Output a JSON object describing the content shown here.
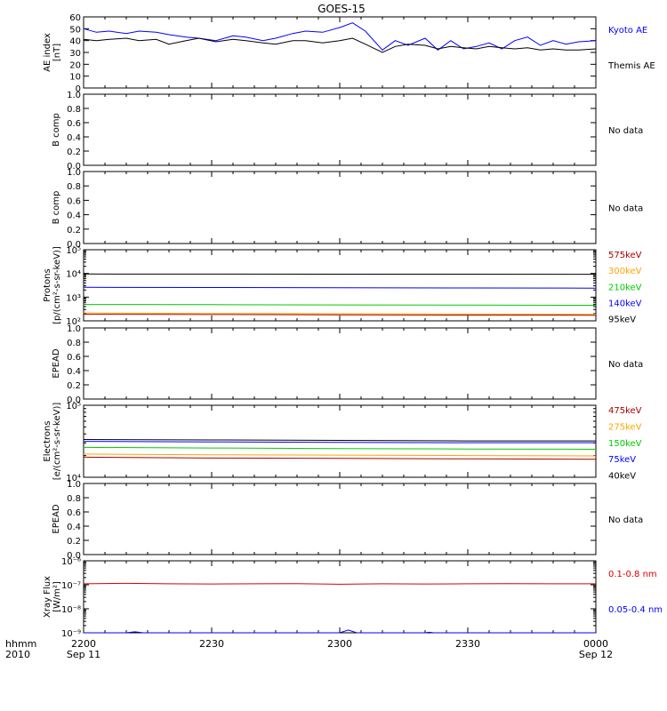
{
  "title": "GOES-15",
  "time_axis": {
    "corner_label": [
      "hhmm",
      "2010"
    ],
    "ticks": [
      {
        "label": "2200",
        "date": "Sep 11",
        "minute": 0
      },
      {
        "label": "2230",
        "date": "",
        "minute": 30
      },
      {
        "label": "2300",
        "date": "",
        "minute": 60
      },
      {
        "label": "2330",
        "date": "",
        "minute": 90
      },
      {
        "label": "0000",
        "date": "Sep 12",
        "minute": 120
      }
    ]
  },
  "colors": {
    "black": "#000000",
    "blue": "#0000ff",
    "green": "#00cc00",
    "orange": "#ffa500",
    "darkred": "#aa0000",
    "red": "#dd0000"
  },
  "chart_data": [
    {
      "type": "line",
      "ylabel": [
        "AE index",
        "[nT]"
      ],
      "ylim": [
        0,
        60
      ],
      "yscale": "linear",
      "yticks": [
        0,
        10,
        20,
        30,
        40,
        50,
        60
      ],
      "series": [
        {
          "name": "Kyoto AE",
          "color": "#0000ff",
          "x": [
            0,
            3,
            6,
            10,
            13,
            17,
            20,
            24,
            27,
            31,
            35,
            38,
            42,
            45,
            49,
            52,
            56,
            60,
            63,
            66,
            70,
            73,
            76,
            80,
            83,
            86,
            89,
            92,
            95,
            98,
            101,
            104,
            107,
            110,
            113,
            116,
            120
          ],
          "y": [
            50,
            47,
            48,
            46,
            48,
            47,
            45,
            43,
            42,
            40,
            44,
            43,
            40,
            42,
            46,
            48,
            47,
            51,
            55,
            48,
            32,
            40,
            36,
            42,
            32,
            40,
            33,
            35,
            38,
            33,
            40,
            43,
            36,
            40,
            37,
            39,
            40
          ]
        },
        {
          "name": "Themis AE",
          "color": "#000000",
          "x": [
            0,
            3,
            6,
            10,
            13,
            17,
            20,
            24,
            27,
            31,
            35,
            38,
            42,
            45,
            49,
            52,
            56,
            60,
            63,
            66,
            70,
            73,
            76,
            80,
            83,
            86,
            89,
            92,
            95,
            98,
            101,
            104,
            107,
            110,
            113,
            116,
            120
          ],
          "y": [
            41,
            40,
            41,
            42,
            40,
            41,
            37,
            40,
            42,
            39,
            41,
            40,
            38,
            37,
            40,
            40,
            38,
            40,
            42,
            37,
            30,
            35,
            37,
            36,
            33,
            35,
            34,
            33,
            35,
            34,
            33,
            34,
            32,
            33,
            32,
            32,
            33
          ]
        }
      ]
    },
    {
      "type": "line",
      "ylabel": [
        "B comp"
      ],
      "ylim": [
        0,
        1
      ],
      "yscale": "linear",
      "yticks": [
        0.0,
        0.2,
        0.4,
        0.6,
        0.8,
        1.0
      ],
      "note": "No data",
      "series": []
    },
    {
      "type": "line",
      "ylabel": [
        "B comp"
      ],
      "ylim": [
        0,
        1
      ],
      "yscale": "linear",
      "yticks": [
        0.0,
        0.2,
        0.4,
        0.6,
        0.8,
        1.0
      ],
      "note": "No data",
      "series": []
    },
    {
      "type": "line",
      "ylabel": [
        "Protons",
        "[p/(cm²-s-sr-keV)]"
      ],
      "ylim": [
        100,
        100000
      ],
      "yscale": "log",
      "yticks": [
        100,
        1000,
        10000,
        100000
      ],
      "ytick_labels": [
        "10²",
        "10³",
        "10⁴",
        "10⁵"
      ],
      "series": [
        {
          "name": "575keV",
          "color": "#aa0000",
          "x": [
            0,
            30,
            60,
            90,
            120
          ],
          "y": [
            190,
            185,
            180,
            175,
            172
          ]
        },
        {
          "name": "300keV",
          "color": "#ffa500",
          "x": [
            0,
            30,
            60,
            90,
            120
          ],
          "y": [
            215,
            205,
            200,
            195,
            190
          ]
        },
        {
          "name": "210keV",
          "color": "#00cc00",
          "x": [
            0,
            30,
            60,
            90,
            120
          ],
          "y": [
            490,
            480,
            470,
            460,
            455
          ]
        },
        {
          "name": "140keV",
          "color": "#0000ff",
          "x": [
            0,
            30,
            60,
            90,
            120
          ],
          "y": [
            2600,
            2550,
            2500,
            2450,
            2400
          ]
        },
        {
          "name": "95keV",
          "color": "#000000",
          "x": [
            0,
            30,
            60,
            90,
            120
          ],
          "y": [
            9500,
            9400,
            9300,
            9300,
            9200
          ]
        }
      ]
    },
    {
      "type": "line",
      "ylabel": [
        "EPEAD"
      ],
      "ylim": [
        0,
        1
      ],
      "yscale": "linear",
      "yticks": [
        0.0,
        0.2,
        0.4,
        0.6,
        0.8,
        1.0
      ],
      "note": "No data",
      "series": []
    },
    {
      "type": "line",
      "ylabel": [
        "Electrons",
        "[e/(cm²-s-sr-keV)]"
      ],
      "ylim": [
        10000,
        100000
      ],
      "yscale": "log",
      "yticks": [
        10000,
        100000
      ],
      "ytick_labels": [
        "10⁴",
        "10⁵"
      ],
      "series": [
        {
          "name": "475keV",
          "color": "#aa0000",
          "x": [
            0,
            30,
            60,
            90,
            120
          ],
          "y": [
            19000,
            18500,
            18300,
            18000,
            17800
          ]
        },
        {
          "name": "275keV",
          "color": "#ffa500",
          "x": [
            0,
            30,
            60,
            90,
            120
          ],
          "y": [
            21000,
            20500,
            20300,
            20000,
            19800
          ]
        },
        {
          "name": "150keV",
          "color": "#00cc00",
          "x": [
            0,
            30,
            60,
            90,
            120
          ],
          "y": [
            26000,
            25500,
            25000,
            24700,
            24500
          ]
        },
        {
          "name": "75keV",
          "color": "#0000ff",
          "x": [
            0,
            30,
            60,
            90,
            120
          ],
          "y": [
            31500,
            31000,
            30500,
            30200,
            30200
          ]
        },
        {
          "name": "40keV",
          "color": "#000000",
          "x": [
            0,
            30,
            60,
            90,
            120
          ],
          "y": [
            33500,
            33000,
            32500,
            32000,
            32000
          ]
        }
      ]
    },
    {
      "type": "line",
      "ylabel": [
        "EPEAD"
      ],
      "ylim": [
        0,
        1
      ],
      "yscale": "linear",
      "yticks": [
        0.0,
        0.2,
        0.4,
        0.6,
        0.8,
        1.0
      ],
      "note": "No data",
      "series": []
    },
    {
      "type": "line",
      "ylabel": [
        "Xray Flux",
        "[W/m²]"
      ],
      "ylim": [
        1e-09,
        1e-06
      ],
      "yscale": "log",
      "yticks": [
        1e-09,
        1e-08,
        1e-07,
        1e-06
      ],
      "ytick_labels": [
        "10⁻⁹",
        "10⁻⁸",
        "10⁻⁷",
        "10⁻⁶"
      ],
      "series": [
        {
          "name": "0.1-0.8 nm",
          "color": "#dd0000",
          "x": [
            0,
            10,
            20,
            30,
            40,
            50,
            60,
            70,
            80,
            90,
            100,
            110,
            120
          ],
          "y": [
            1.1e-07,
            1.15e-07,
            1.1e-07,
            1.08e-07,
            1.1e-07,
            1.12e-07,
            1.05e-07,
            1.1e-07,
            1.08e-07,
            1.1e-07,
            1.12e-07,
            1.1e-07,
            1.1e-07
          ]
        },
        {
          "name": "0.05-0.4 nm",
          "color": "#0000ff",
          "x": [
            0,
            10,
            12,
            14,
            60,
            62,
            64,
            80,
            81,
            82,
            120
          ],
          "y": [
            1e-09,
            1e-09,
            1.1e-09,
            1e-09,
            1e-09,
            1.3e-09,
            1e-09,
            1e-09,
            1.05e-09,
            1e-09,
            1e-09
          ]
        }
      ]
    }
  ]
}
